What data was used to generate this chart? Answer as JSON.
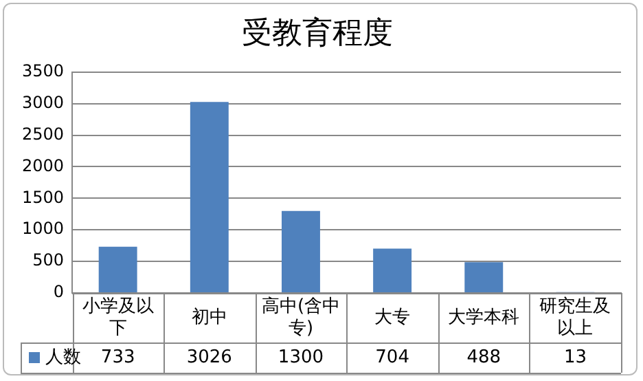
{
  "chart_data": {
    "type": "bar",
    "title": "受教育程度",
    "categories": [
      "小学及以下",
      "初中",
      "高中(含中专)",
      "大专",
      "大学本科",
      "研究生及以上"
    ],
    "series": [
      {
        "name": "人数",
        "color": "#4f81bd",
        "values": [
          733,
          3026,
          1300,
          704,
          488,
          13
        ]
      }
    ],
    "ylim": [
      0,
      3500
    ],
    "yticks": [
      0,
      500,
      1000,
      1500,
      2000,
      2500,
      3000,
      3500
    ],
    "grid": "y",
    "legend": "bottom",
    "data_labels": true
  }
}
